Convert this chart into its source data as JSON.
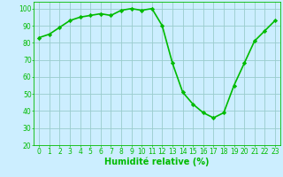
{
  "x": [
    0,
    1,
    2,
    3,
    4,
    5,
    6,
    7,
    8,
    9,
    10,
    11,
    12,
    13,
    14,
    15,
    16,
    17,
    18,
    19,
    20,
    21,
    22,
    23
  ],
  "y": [
    83,
    85,
    89,
    93,
    95,
    96,
    97,
    96,
    99,
    100,
    99,
    100,
    90,
    68,
    51,
    44,
    39,
    36,
    39,
    55,
    68,
    81,
    87,
    93
  ],
  "line_color": "#00bb00",
  "marker": "D",
  "marker_size": 2.2,
  "bg_color": "#cceeff",
  "grid_color": "#99cccc",
  "xlabel": "Humidité relative (%)",
  "xlabel_color": "#00bb00",
  "ylim": [
    20,
    104
  ],
  "xlim": [
    -0.5,
    23.5
  ],
  "yticks": [
    20,
    30,
    40,
    50,
    60,
    70,
    80,
    90,
    100
  ],
  "xticks": [
    0,
    1,
    2,
    3,
    4,
    5,
    6,
    7,
    8,
    9,
    10,
    11,
    12,
    13,
    14,
    15,
    16,
    17,
    18,
    19,
    20,
    21,
    22,
    23
  ],
  "tick_color": "#00bb00",
  "tick_fontsize": 5.5,
  "xlabel_fontsize": 7,
  "line_width": 1.2
}
